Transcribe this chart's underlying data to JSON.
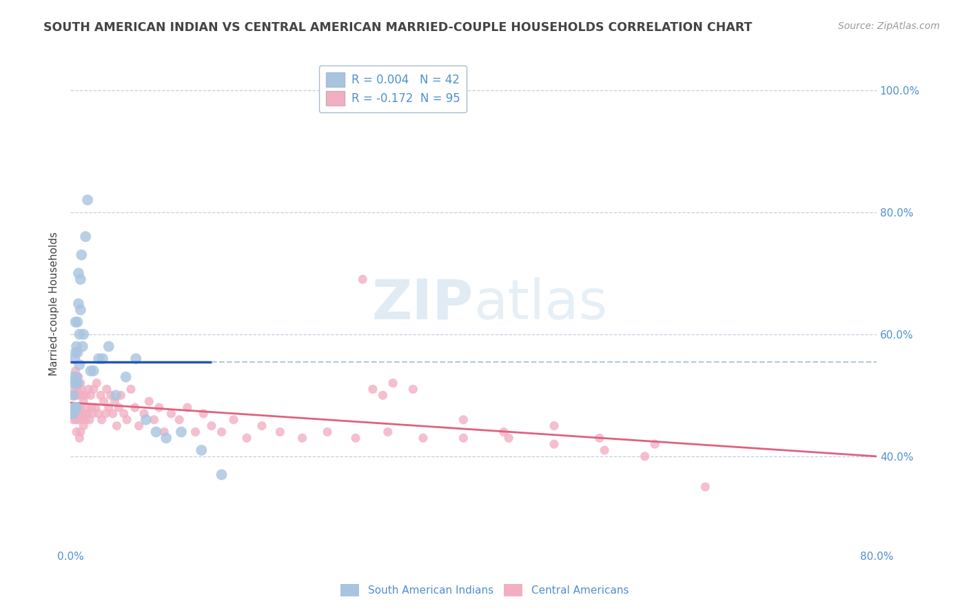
{
  "title": "SOUTH AMERICAN INDIAN VS CENTRAL AMERICAN MARRIED-COUPLE HOUSEHOLDS CORRELATION CHART",
  "source": "Source: ZipAtlas.com",
  "ylabel": "Married-couple Households",
  "xlim": [
    0.0,
    0.8
  ],
  "ylim": [
    0.25,
    1.05
  ],
  "ytick_vals": [
    0.4,
    0.6,
    0.8,
    1.0
  ],
  "blue_R": "0.004",
  "blue_N": "42",
  "pink_R": "-0.172",
  "pink_N": "95",
  "blue_color": "#a8c4e0",
  "pink_color": "#f2afc2",
  "blue_line_color": "#2255bb",
  "pink_line_color": "#e06080",
  "blue_dash_color": "#b0c8e0",
  "legend_label_blue": "South American Indians",
  "legend_label_pink": "Central Americans",
  "watermark": "ZIPatlas",
  "background_color": "#ffffff",
  "title_color": "#444444",
  "title_fontsize": 12.5,
  "axis_label_color": "#5090d0",
  "grid_color": "#c0d0e0",
  "dot_size_blue": 130,
  "dot_size_pink": 90,
  "blue_line_solid_end": 0.14,
  "blue_line_y": 0.555,
  "pink_line_start_y": 0.488,
  "pink_line_end_y": 0.4,
  "blue_x": [
    0.002,
    0.003,
    0.003,
    0.003,
    0.004,
    0.004,
    0.004,
    0.005,
    0.005,
    0.005,
    0.005,
    0.006,
    0.006,
    0.006,
    0.007,
    0.007,
    0.007,
    0.008,
    0.008,
    0.009,
    0.009,
    0.01,
    0.01,
    0.011,
    0.012,
    0.013,
    0.015,
    0.017,
    0.02,
    0.023,
    0.028,
    0.032,
    0.038,
    0.045,
    0.055,
    0.065,
    0.075,
    0.085,
    0.095,
    0.11,
    0.13,
    0.15
  ],
  "blue_y": [
    0.47,
    0.47,
    0.5,
    0.53,
    0.48,
    0.52,
    0.56,
    0.48,
    0.52,
    0.57,
    0.62,
    0.48,
    0.53,
    0.58,
    0.52,
    0.57,
    0.62,
    0.65,
    0.7,
    0.55,
    0.6,
    0.64,
    0.69,
    0.73,
    0.58,
    0.6,
    0.76,
    0.82,
    0.54,
    0.54,
    0.56,
    0.56,
    0.58,
    0.5,
    0.53,
    0.56,
    0.46,
    0.44,
    0.43,
    0.44,
    0.41,
    0.37
  ],
  "pink_x": [
    0.002,
    0.003,
    0.003,
    0.004,
    0.004,
    0.005,
    0.005,
    0.005,
    0.006,
    0.006,
    0.006,
    0.007,
    0.007,
    0.008,
    0.008,
    0.008,
    0.009,
    0.009,
    0.01,
    0.01,
    0.01,
    0.011,
    0.011,
    0.012,
    0.012,
    0.013,
    0.013,
    0.014,
    0.015,
    0.015,
    0.016,
    0.017,
    0.018,
    0.019,
    0.02,
    0.021,
    0.022,
    0.023,
    0.025,
    0.026,
    0.028,
    0.03,
    0.031,
    0.033,
    0.035,
    0.036,
    0.038,
    0.04,
    0.042,
    0.044,
    0.046,
    0.048,
    0.05,
    0.053,
    0.056,
    0.06,
    0.064,
    0.068,
    0.073,
    0.078,
    0.083,
    0.088,
    0.093,
    0.1,
    0.108,
    0.116,
    0.124,
    0.132,
    0.14,
    0.15,
    0.162,
    0.175,
    0.19,
    0.208,
    0.23,
    0.255,
    0.283,
    0.315,
    0.35,
    0.39,
    0.435,
    0.48,
    0.53,
    0.58,
    0.63,
    0.29,
    0.3,
    0.31,
    0.32,
    0.34,
    0.39,
    0.43,
    0.48,
    0.525,
    0.57
  ],
  "pink_y": [
    0.47,
    0.46,
    0.5,
    0.47,
    0.51,
    0.46,
    0.5,
    0.54,
    0.48,
    0.52,
    0.44,
    0.47,
    0.51,
    0.46,
    0.5,
    0.53,
    0.47,
    0.43,
    0.48,
    0.52,
    0.44,
    0.47,
    0.51,
    0.46,
    0.5,
    0.45,
    0.49,
    0.47,
    0.46,
    0.5,
    0.48,
    0.47,
    0.51,
    0.46,
    0.5,
    0.48,
    0.47,
    0.51,
    0.48,
    0.52,
    0.47,
    0.5,
    0.46,
    0.49,
    0.47,
    0.51,
    0.48,
    0.5,
    0.47,
    0.49,
    0.45,
    0.48,
    0.5,
    0.47,
    0.46,
    0.51,
    0.48,
    0.45,
    0.47,
    0.49,
    0.46,
    0.48,
    0.44,
    0.47,
    0.46,
    0.48,
    0.44,
    0.47,
    0.45,
    0.44,
    0.46,
    0.43,
    0.45,
    0.44,
    0.43,
    0.44,
    0.43,
    0.44,
    0.43,
    0.43,
    0.43,
    0.42,
    0.41,
    0.42,
    0.35,
    0.69,
    0.51,
    0.5,
    0.52,
    0.51,
    0.46,
    0.44,
    0.45,
    0.43,
    0.4
  ]
}
